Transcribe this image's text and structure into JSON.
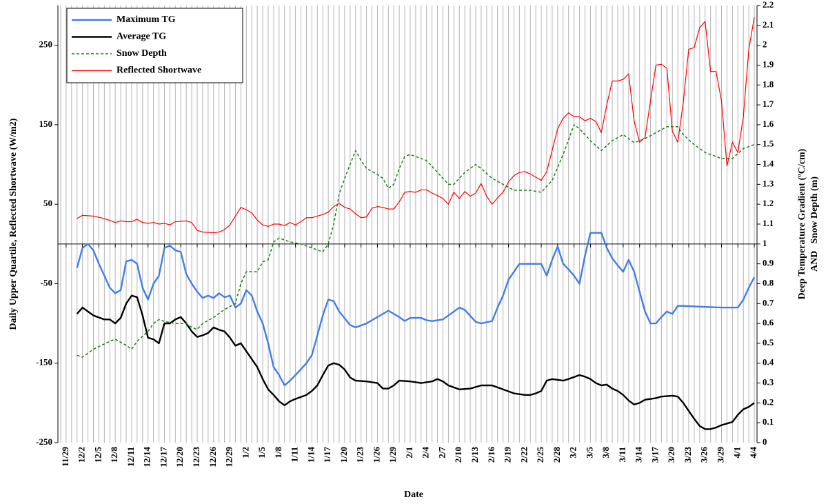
{
  "chart_data": {
    "type": "line",
    "xlabel": "Date",
    "ylabel": "Daily Upper Quartile, Reflected Shortwave (W/m2)",
    "y2label": [
      "Deep Temperature Gradient (ºC/cm)",
      "AND   Snow Depth (m)"
    ],
    "xlim": [
      -1.5,
      126.5
    ],
    "xticks": [
      {
        "value": 0,
        "label": "11/29"
      },
      {
        "value": 3,
        "label": "12/2"
      },
      {
        "value": 6,
        "label": "12/5"
      },
      {
        "value": 9,
        "label": "12/8"
      },
      {
        "value": 12,
        "label": "12/11"
      },
      {
        "value": 15,
        "label": "12/14"
      },
      {
        "value": 18,
        "label": "12/17"
      },
      {
        "value": 21,
        "label": "12/20"
      },
      {
        "value": 24,
        "label": "12/23"
      },
      {
        "value": 27,
        "label": "12/26"
      },
      {
        "value": 30,
        "label": "12/29"
      },
      {
        "value": 33,
        "label": "1/2"
      },
      {
        "value": 36,
        "label": "1/5"
      },
      {
        "value": 39,
        "label": "1/8"
      },
      {
        "value": 42,
        "label": "1/11"
      },
      {
        "value": 45,
        "label": "1/14"
      },
      {
        "value": 48,
        "label": "1/17"
      },
      {
        "value": 51,
        "label": "1/20"
      },
      {
        "value": 54,
        "label": "1/23"
      },
      {
        "value": 57,
        "label": "1/26"
      },
      {
        "value": 60,
        "label": "1/29"
      },
      {
        "value": 63,
        "label": "2/1"
      },
      {
        "value": 66,
        "label": "2/4"
      },
      {
        "value": 69,
        "label": "2/7"
      },
      {
        "value": 72,
        "label": "2/10"
      },
      {
        "value": 75,
        "label": "2/13"
      },
      {
        "value": 78,
        "label": "2/16"
      },
      {
        "value": 81,
        "label": "2/19"
      },
      {
        "value": 84,
        "label": "2/22"
      },
      {
        "value": 87,
        "label": "2/25"
      },
      {
        "value": 90,
        "label": "2/28"
      },
      {
        "value": 93,
        "label": "3/2"
      },
      {
        "value": 96,
        "label": "3/5"
      },
      {
        "value": 99,
        "label": "3/8"
      },
      {
        "value": 102,
        "label": "3/11"
      },
      {
        "value": 105,
        "label": "3/14"
      },
      {
        "value": 108,
        "label": "3/17"
      },
      {
        "value": 111,
        "label": "3/20"
      },
      {
        "value": 114,
        "label": "3/23"
      },
      {
        "value": 117,
        "label": "3/26"
      },
      {
        "value": 120,
        "label": "3/29"
      },
      {
        "value": 123,
        "label": "4/1"
      },
      {
        "value": 126,
        "label": "4/4"
      }
    ],
    "ylim": [
      -250,
      300
    ],
    "yticks": [
      -250,
      -150,
      -50,
      50,
      150,
      250
    ],
    "y2lim": [
      0,
      2.2
    ],
    "y2ticks": [
      0,
      0.1,
      0.2,
      0.3,
      0.4,
      0.5,
      0.6,
      0.7,
      0.8,
      0.9,
      1,
      1.1,
      1.2,
      1.3,
      1.4,
      1.5,
      1.6,
      1.7,
      1.8,
      1.9,
      2,
      2.1,
      2.2
    ],
    "x_grid": true,
    "legend": "upper left",
    "series": [
      {
        "name": "Maximum TG",
        "color": "#3f7ee8",
        "axis": "y2",
        "line_style": "solid",
        "x": [
          2,
          3,
          4,
          5,
          6,
          7,
          8,
          9,
          10,
          11,
          12,
          13,
          14,
          15,
          16,
          17,
          18,
          19,
          20,
          21,
          22,
          23,
          24,
          25,
          26,
          27,
          28,
          29,
          30,
          31,
          32,
          33,
          34,
          35,
          36,
          37,
          38,
          39,
          40,
          41,
          42,
          44,
          45,
          46,
          47,
          48,
          49,
          50,
          52,
          53,
          55,
          57,
          59,
          61,
          62,
          63,
          65,
          66,
          67,
          69,
          71,
          72,
          73,
          75,
          76,
          78,
          79,
          80,
          81,
          83,
          87,
          88,
          89,
          90,
          91,
          92,
          93,
          94,
          95,
          96,
          98,
          99,
          100,
          101,
          102,
          103,
          104,
          105,
          106,
          107,
          108,
          109,
          110,
          111,
          112,
          113,
          120,
          123,
          124,
          125,
          126
        ],
        "values": [
          0.88,
          0.98,
          1.0,
          0.968,
          0.9,
          0.84,
          0.78,
          0.752,
          0.768,
          0.912,
          0.92,
          0.9,
          0.78,
          0.72,
          0.8,
          0.84,
          0.98,
          0.992,
          0.968,
          0.96,
          0.848,
          0.8,
          0.76,
          0.728,
          0.74,
          0.728,
          0.752,
          0.732,
          0.74,
          0.68,
          0.7,
          0.768,
          0.74,
          0.66,
          0.6,
          0.5,
          0.38,
          0.34,
          0.288,
          0.312,
          0.34,
          0.4,
          0.44,
          0.54,
          0.64,
          0.72,
          0.712,
          0.66,
          0.592,
          0.58,
          0.6,
          0.632,
          0.664,
          0.632,
          0.612,
          0.628,
          0.628,
          0.616,
          0.612,
          0.62,
          0.66,
          0.68,
          0.668,
          0.608,
          0.6,
          0.612,
          0.68,
          0.74,
          0.82,
          0.9,
          0.9,
          0.84,
          0.92,
          0.988,
          0.9,
          0.872,
          0.84,
          0.8,
          0.94,
          1.056,
          1.056,
          0.98,
          0.928,
          0.892,
          0.86,
          0.92,
          0.86,
          0.76,
          0.66,
          0.6,
          0.6,
          0.632,
          0.66,
          0.648,
          0.688,
          0.688,
          0.68,
          0.68,
          0.72,
          0.78,
          0.832
        ]
      },
      {
        "name": "Average TG",
        "color": "#000000",
        "axis": "y2",
        "line_style": "solid",
        "x": [
          2,
          3,
          5,
          7,
          8,
          9,
          10,
          11,
          12,
          13,
          14,
          15,
          16,
          17,
          18,
          19,
          20,
          21,
          22,
          23,
          24,
          25,
          26,
          27,
          28,
          29,
          30,
          31,
          32,
          33,
          34,
          35,
          36,
          37,
          38,
          39,
          40,
          41,
          42,
          44,
          45,
          46,
          47,
          48,
          49,
          50,
          51,
          52,
          53,
          55,
          57,
          58,
          59,
          60,
          61,
          63,
          65,
          67,
          68,
          69,
          70,
          72,
          74,
          76,
          78,
          80,
          82,
          84,
          85,
          86,
          87,
          88,
          89,
          90,
          91,
          92,
          94,
          95,
          96,
          97,
          98,
          99,
          100,
          101,
          102,
          103,
          104,
          105,
          106,
          108,
          109,
          111,
          112,
          113,
          114,
          115,
          116,
          117,
          118,
          119,
          120,
          121,
          122,
          123,
          124,
          125,
          126
        ],
        "values": [
          0.648,
          0.68,
          0.64,
          0.62,
          0.62,
          0.6,
          0.628,
          0.7,
          0.74,
          0.732,
          0.64,
          0.528,
          0.52,
          0.5,
          0.6,
          0.6,
          0.62,
          0.632,
          0.6,
          0.56,
          0.532,
          0.54,
          0.552,
          0.58,
          0.568,
          0.56,
          0.528,
          0.488,
          0.5,
          0.46,
          0.42,
          0.38,
          0.32,
          0.268,
          0.24,
          0.208,
          0.188,
          0.208,
          0.22,
          0.24,
          0.26,
          0.288,
          0.34,
          0.388,
          0.4,
          0.392,
          0.368,
          0.328,
          0.312,
          0.308,
          0.3,
          0.272,
          0.272,
          0.288,
          0.312,
          0.308,
          0.3,
          0.308,
          0.32,
          0.308,
          0.288,
          0.268,
          0.272,
          0.288,
          0.288,
          0.268,
          0.248,
          0.24,
          0.24,
          0.248,
          0.26,
          0.312,
          0.32,
          0.316,
          0.312,
          0.32,
          0.34,
          0.332,
          0.32,
          0.3,
          0.288,
          0.292,
          0.272,
          0.26,
          0.24,
          0.212,
          0.192,
          0.2,
          0.216,
          0.224,
          0.232,
          0.236,
          0.232,
          0.2,
          0.16,
          0.12,
          0.084,
          0.068,
          0.068,
          0.076,
          0.088,
          0.096,
          0.104,
          0.14,
          0.168,
          0.18,
          0.2
        ]
      },
      {
        "name": "Snow Depth",
        "color": "#1b7d1b",
        "axis": "y2",
        "line_style": "dashed",
        "x": [
          2,
          3,
          5,
          8,
          9,
          11,
          12,
          13,
          15,
          16,
          17,
          18,
          20,
          22,
          23,
          24,
          25,
          27,
          29,
          31,
          32,
          33,
          34,
          35,
          36,
          37,
          38,
          39,
          41,
          43,
          45,
          47,
          48,
          49,
          50,
          51,
          52,
          53,
          54,
          55,
          57,
          58,
          59,
          60,
          61,
          62,
          63,
          64,
          66,
          68,
          70,
          71,
          73,
          75,
          76,
          78,
          80,
          82,
          85,
          87,
          89,
          91,
          93,
          94,
          96,
          98,
          100,
          102,
          104,
          106,
          108,
          110,
          112,
          113,
          115,
          117,
          120,
          122,
          124,
          126
        ],
        "values": [
          0.44,
          0.43,
          0.47,
          0.51,
          0.52,
          0.49,
          0.47,
          0.51,
          0.56,
          0.6,
          0.62,
          0.61,
          0.6,
          0.6,
          0.58,
          0.57,
          0.6,
          0.63,
          0.67,
          0.7,
          0.8,
          0.86,
          0.86,
          0.86,
          0.91,
          0.92,
          1.01,
          1.03,
          1.01,
          1.0,
          0.98,
          0.96,
          1.0,
          1.1,
          1.25,
          1.33,
          1.4,
          1.47,
          1.42,
          1.38,
          1.35,
          1.33,
          1.28,
          1.3,
          1.38,
          1.44,
          1.45,
          1.44,
          1.42,
          1.36,
          1.3,
          1.3,
          1.36,
          1.4,
          1.38,
          1.33,
          1.3,
          1.27,
          1.27,
          1.26,
          1.32,
          1.45,
          1.6,
          1.58,
          1.52,
          1.47,
          1.52,
          1.55,
          1.51,
          1.53,
          1.56,
          1.59,
          1.59,
          1.55,
          1.5,
          1.46,
          1.43,
          1.43,
          1.48,
          1.5
        ]
      },
      {
        "name": "Reflected Shortwave",
        "color": "#ff0000",
        "axis": "y",
        "line_style": "solid",
        "x": [
          2,
          3,
          5,
          7,
          9,
          10,
          11,
          12,
          13,
          14,
          15,
          16,
          17,
          18,
          19,
          20,
          22,
          23,
          24,
          25,
          27,
          28,
          29,
          30,
          31,
          32,
          33,
          34,
          35,
          36,
          37,
          38,
          39,
          40,
          41,
          42,
          43,
          44,
          45,
          46,
          47,
          48,
          49,
          50,
          51,
          52,
          53,
          54,
          55,
          56,
          57,
          58,
          59,
          60,
          61,
          62,
          63,
          64,
          65,
          66,
          67,
          68,
          69,
          70,
          71,
          72,
          73,
          74,
          75,
          76,
          77,
          78,
          79,
          80,
          81,
          82,
          83,
          84,
          85,
          86,
          87,
          88,
          89,
          90,
          91,
          92,
          93,
          94,
          95,
          96,
          97,
          98,
          99,
          100,
          101,
          102,
          103,
          104,
          105,
          106,
          107,
          108,
          109,
          110,
          111,
          112,
          113,
          114,
          115,
          116,
          117,
          118,
          119,
          120,
          121,
          122,
          123,
          124,
          125,
          126
        ],
        "values": [
          32,
          36,
          35,
          32,
          27,
          29,
          28,
          28,
          31,
          27,
          26,
          27,
          25,
          26,
          24,
          28,
          29,
          27,
          17,
          15,
          14,
          15,
          18,
          24,
          35,
          46,
          43,
          39,
          30,
          24,
          22,
          25,
          25,
          23,
          27,
          24,
          28,
          33,
          33,
          35,
          37,
          40,
          47,
          51,
          46,
          44,
          38,
          33,
          34,
          45,
          47,
          46,
          44,
          44,
          53,
          65,
          66,
          65,
          68,
          68,
          64,
          61,
          57,
          50,
          65,
          57,
          66,
          60,
          64,
          76,
          60,
          50,
          58,
          65,
          78,
          86,
          90,
          91,
          88,
          84,
          80,
          91,
          118,
          145,
          158,
          165,
          160,
          160,
          155,
          158,
          154,
          140,
          175,
          205,
          205,
          207,
          214,
          155,
          128,
          134,
          180,
          225,
          226,
          221,
          142,
          128,
          178,
          245,
          247,
          272,
          280,
          217,
          217,
          180,
          98,
          128,
          115,
          160,
          245,
          285
        ]
      }
    ]
  }
}
